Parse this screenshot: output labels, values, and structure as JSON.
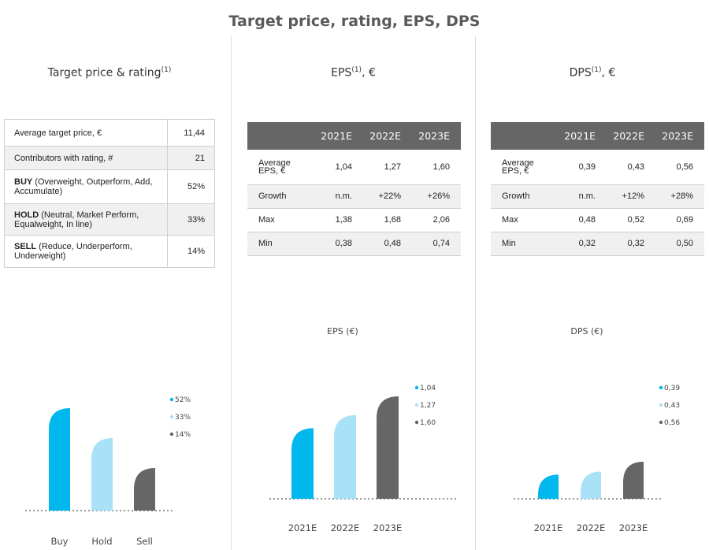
{
  "page": {
    "title": "Target price, rating, EPS, DPS"
  },
  "rating_panel": {
    "title": "Target price & rating",
    "title_sup": "(1)",
    "rows": [
      {
        "bold": "",
        "label": "Average target price, €",
        "value": "11,44"
      },
      {
        "bold": "",
        "label": "Contributors with rating, #",
        "value": "21"
      },
      {
        "bold": "BUY",
        "label": " (Overweight, Outperform, Add, Accumulate)",
        "value": "52%"
      },
      {
        "bold": "HOLD",
        "label": " (Neutral, Market Perform, Equalweight, In line)",
        "value": "33%"
      },
      {
        "bold": "SELL",
        "label": " (Reduce, Underperform, Underweight)",
        "value": "14%"
      }
    ]
  },
  "eps_panel": {
    "title": "EPS",
    "title_sup": "(1)",
    "title_suffix": ", €",
    "headers": [
      "",
      "2021E",
      "2022E",
      "2023E"
    ],
    "rows": [
      {
        "label": "Average EPS, €",
        "values": [
          "1,04",
          "1,27",
          "1,60"
        ]
      },
      {
        "label": "Growth",
        "values": [
          "n.m.",
          "+22%",
          "+26%"
        ]
      },
      {
        "label": "Max",
        "values": [
          "1,38",
          "1,68",
          "2,06"
        ]
      },
      {
        "label": "Min",
        "values": [
          "0,38",
          "0,48",
          "0,74"
        ]
      }
    ]
  },
  "dps_panel": {
    "title": "DPS",
    "title_sup": "(1)",
    "title_suffix": ", €",
    "headers": [
      "",
      "2021E",
      "2022E",
      "2023E"
    ],
    "rows": [
      {
        "label": "Average EPS, €",
        "values": [
          "0,39",
          "0,43",
          "0,56"
        ]
      },
      {
        "label": "Growth",
        "values": [
          "n.m.",
          "+12%",
          "+28%"
        ]
      },
      {
        "label": "Max",
        "values": [
          "0,48",
          "0,52",
          "0,69"
        ]
      },
      {
        "label": "Min",
        "values": [
          "0,32",
          "0,32",
          "0,50"
        ]
      }
    ]
  },
  "colors": {
    "blue": "#00b7ee",
    "light_blue": "#a9e1f7",
    "grey": "#666666"
  },
  "chart_data": [
    {
      "type": "bar",
      "title": "",
      "categories": [
        "Buy",
        "Hold",
        "Sell"
      ],
      "values": [
        52,
        33,
        14
      ],
      "legend": [
        "52%",
        "33%",
        "14%"
      ],
      "ylim": [
        0,
        52
      ]
    },
    {
      "type": "bar",
      "title": "EPS (€)",
      "categories": [
        "2021E",
        "2022E",
        "2023E"
      ],
      "values": [
        1.04,
        1.27,
        1.6
      ],
      "legend": [
        "1,04",
        "1,27",
        "1,60"
      ],
      "ylim": [
        0.6,
        1.6
      ]
    },
    {
      "type": "bar",
      "title": "DPS (€)",
      "categories": [
        "2021E",
        "2022E",
        "2023E"
      ],
      "values": [
        0.39,
        0.43,
        0.56
      ],
      "legend": [
        "0,39",
        "0,43",
        "0,56"
      ],
      "ylim": [
        0.3,
        0.56
      ]
    }
  ]
}
